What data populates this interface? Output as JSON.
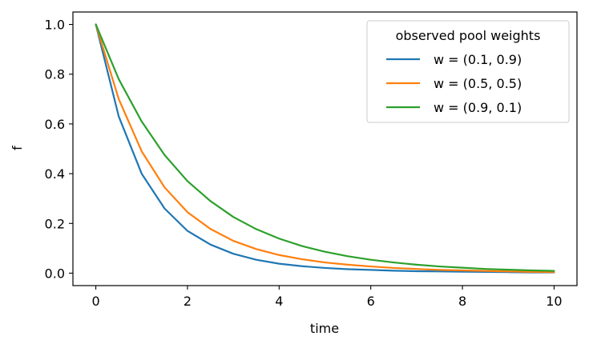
{
  "chart_data": {
    "type": "line",
    "title": "",
    "xlabel": "time",
    "ylabel": "f",
    "xlim": [
      -0.5,
      10.5
    ],
    "ylim": [
      -0.05,
      1.05
    ],
    "xticks": [
      0,
      2,
      4,
      6,
      8,
      10
    ],
    "xtick_labels": [
      "0",
      "2",
      "4",
      "6",
      "8",
      "10"
    ],
    "yticks": [
      0.0,
      0.2,
      0.4,
      0.6,
      0.8,
      1.0
    ],
    "ytick_labels": [
      "0.0",
      "0.2",
      "0.4",
      "0.6",
      "0.8",
      "1.0"
    ],
    "grid": false,
    "legend": {
      "title": "observed pool weights",
      "placement": "top-right"
    },
    "x": [
      0,
      0.5,
      1,
      1.5,
      2,
      2.5,
      3,
      3.5,
      4,
      4.5,
      5,
      5.5,
      6,
      6.5,
      7,
      7.5,
      8,
      8.5,
      9,
      9.5,
      10
    ],
    "series": [
      {
        "name": "w = (0.1, 0.9)",
        "color": "#1f77b4",
        "values": [
          1.0,
          0.63,
          0.4,
          0.26,
          0.17,
          0.115,
          0.078,
          0.054,
          0.038,
          0.028,
          0.021,
          0.016,
          0.013,
          0.01,
          0.008,
          0.007,
          0.006,
          0.005,
          0.004,
          0.003,
          0.003
        ]
      },
      {
        "name": "w = (0.5, 0.5)",
        "color": "#ff7f0e",
        "values": [
          1.0,
          0.7,
          0.49,
          0.345,
          0.245,
          0.178,
          0.13,
          0.097,
          0.073,
          0.056,
          0.043,
          0.034,
          0.027,
          0.021,
          0.017,
          0.013,
          0.011,
          0.009,
          0.007,
          0.005,
          0.004
        ]
      },
      {
        "name": "w = (0.9, 0.1)",
        "color": "#2ca02c",
        "values": [
          1.0,
          0.78,
          0.61,
          0.475,
          0.37,
          0.29,
          0.226,
          0.177,
          0.139,
          0.109,
          0.086,
          0.068,
          0.054,
          0.043,
          0.034,
          0.027,
          0.022,
          0.017,
          0.014,
          0.011,
          0.009
        ]
      }
    ]
  }
}
